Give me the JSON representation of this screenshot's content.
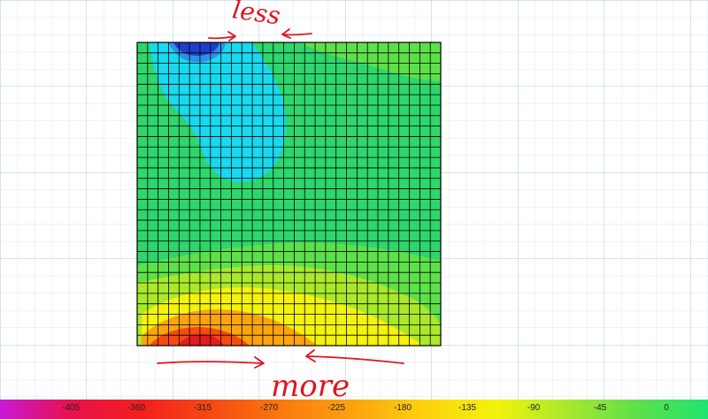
{
  "annotations": {
    "top_note": "less",
    "bottom_note": "more"
  },
  "legend": {
    "labels": [
      "-405",
      "-360",
      "-315",
      "-270",
      "-225",
      "-180",
      "-135",
      "-90",
      "-45",
      "0"
    ],
    "colors": [
      "#c71ad6",
      "#e8104c",
      "#f21f1f",
      "#f64a12",
      "#f97a0e",
      "#fba40e",
      "#fdd20d",
      "#f3f30d",
      "#a9e92b",
      "#5ee04a",
      "#1ee46f"
    ]
  },
  "colors": {
    "plate_base": "#2ed66b",
    "light_green": "#5ad936",
    "cyan": "#18d6ee",
    "dark_blue": "#1f3fc9",
    "yellow": "#f2ef11",
    "orange": "#f9a80c",
    "red": "#e31b1b",
    "annotation_red": "#e0161c",
    "mesh": "#000000",
    "grid": "#cfe3f5"
  }
}
